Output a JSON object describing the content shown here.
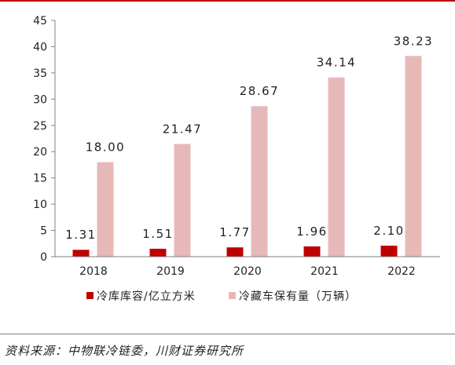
{
  "source": "资料来源：中物联冷链委，川财证券研究所",
  "chart_data": {
    "type": "bar",
    "title": "",
    "xlabel": "",
    "ylabel": "",
    "categories": [
      "2018",
      "2019",
      "2020",
      "2021",
      "2022"
    ],
    "ylim": [
      0,
      45
    ],
    "yticks": [
      0,
      5,
      10,
      15,
      20,
      25,
      30,
      35,
      40,
      45
    ],
    "grid": false,
    "legend_position": "bottom",
    "series": [
      {
        "name": "冷库库容/亿立方米",
        "values": [
          1.31,
          1.51,
          1.77,
          1.96,
          2.1
        ],
        "labels": [
          "1.31",
          "1.51",
          "1.77",
          "1.96",
          "2.10"
        ],
        "color": "#c00000"
      },
      {
        "name": "冷藏车保有量（万辆）",
        "values": [
          18.0,
          21.47,
          28.67,
          34.14,
          38.23
        ],
        "labels": [
          "18.00",
          "21.47",
          "28.67",
          "34.14",
          "38.23"
        ],
        "color": "#e6b9b8"
      }
    ]
  }
}
